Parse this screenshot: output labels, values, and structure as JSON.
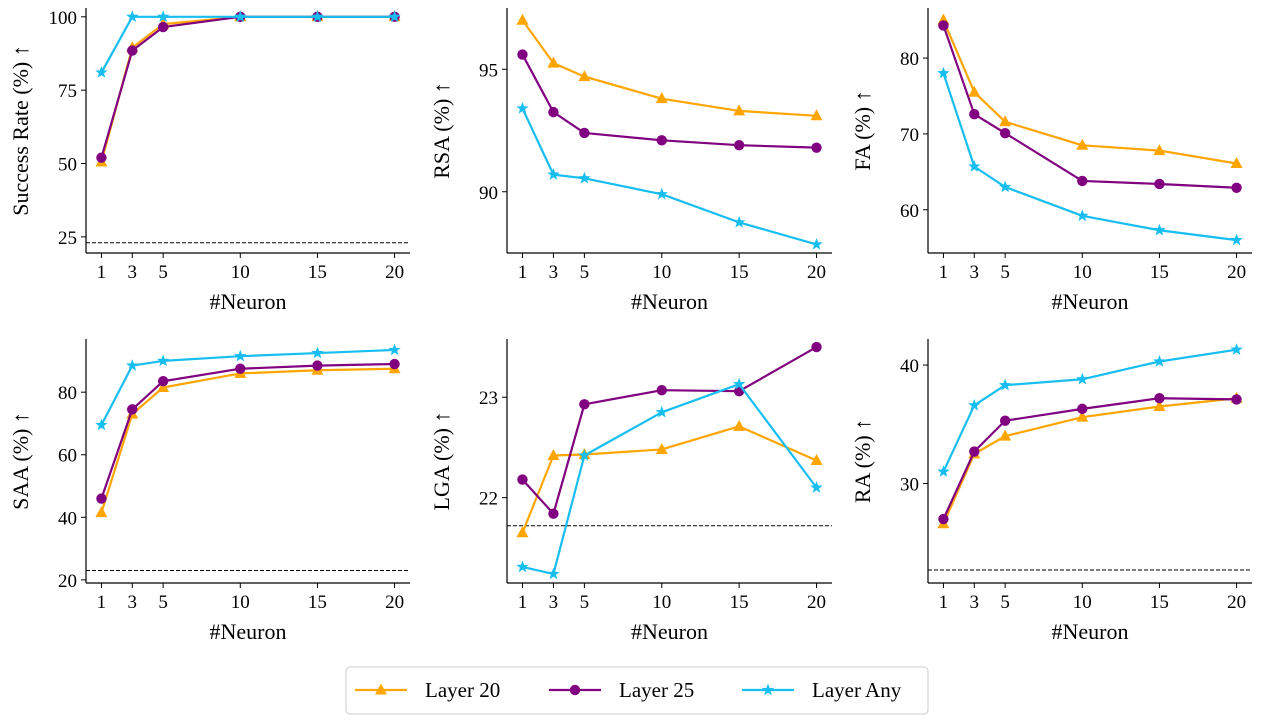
{
  "legend": {
    "items": [
      {
        "name": "Layer 20",
        "color": "#FFA500",
        "marker": "triangle"
      },
      {
        "name": "Layer 25",
        "color": "#800080",
        "marker": "circle"
      },
      {
        "name": "Layer Any",
        "color": "#17BEEF",
        "marker": "star"
      }
    ]
  },
  "chart_data": [
    {
      "type": "line",
      "title": "",
      "xlabel": "#Neuron",
      "ylabel": "Success Rate (%) ↑",
      "x": [
        1,
        3,
        5,
        10,
        15,
        20
      ],
      "xticks": [
        1,
        3,
        5,
        10,
        15,
        20
      ],
      "xlim": [
        0,
        21
      ],
      "ylim": [
        19.5,
        103
      ],
      "yticks": [
        25,
        50,
        75,
        100
      ],
      "baseline": 23,
      "series": [
        {
          "name": "Layer 20",
          "values": [
            50.5,
            89.5,
            97.5,
            100,
            100,
            100
          ]
        },
        {
          "name": "Layer 25",
          "values": [
            52,
            88.5,
            96.5,
            100,
            100,
            100
          ]
        },
        {
          "name": "Layer Any",
          "values": [
            81,
            100,
            100,
            100,
            100,
            100
          ]
        }
      ]
    },
    {
      "type": "line",
      "title": "",
      "xlabel": "#Neuron",
      "ylabel": "RSA (%) ↑",
      "x": [
        1,
        3,
        5,
        10,
        15,
        20
      ],
      "xticks": [
        1,
        3,
        5,
        10,
        15,
        20
      ],
      "xlim": [
        0,
        21
      ],
      "ylim": [
        87.5,
        97.5
      ],
      "yticks": [
        90,
        95
      ],
      "baseline": null,
      "series": [
        {
          "name": "Layer 20",
          "values": [
            97.0,
            95.25,
            94.7,
            93.8,
            93.3,
            93.1
          ]
        },
        {
          "name": "Layer 25",
          "values": [
            95.6,
            93.25,
            92.4,
            92.1,
            91.9,
            91.8
          ]
        },
        {
          "name": "Layer Any",
          "values": [
            93.4,
            90.7,
            90.55,
            89.9,
            88.75,
            87.85
          ]
        }
      ]
    },
    {
      "type": "line",
      "title": "",
      "xlabel": "#Neuron",
      "ylabel": "FA (%) ↑",
      "x": [
        1,
        3,
        5,
        10,
        15,
        20
      ],
      "xticks": [
        1,
        3,
        5,
        10,
        15,
        20
      ],
      "xlim": [
        0,
        21
      ],
      "ylim": [
        54.3,
        86.6
      ],
      "yticks": [
        60,
        70,
        80
      ],
      "baseline": null,
      "series": [
        {
          "name": "Layer 20",
          "values": [
            85,
            75.5,
            71.6,
            68.5,
            67.8,
            66.1
          ]
        },
        {
          "name": "Layer 25",
          "values": [
            84.3,
            72.6,
            70.1,
            63.8,
            63.4,
            62.9
          ]
        },
        {
          "name": "Layer Any",
          "values": [
            78,
            65.7,
            63.0,
            59.2,
            57.3,
            56.0
          ]
        }
      ]
    },
    {
      "type": "line",
      "title": "",
      "xlabel": "#Neuron",
      "ylabel": "SAA (%) ↑",
      "x": [
        1,
        3,
        5,
        10,
        15,
        20
      ],
      "xticks": [
        1,
        3,
        5,
        10,
        15,
        20
      ],
      "xlim": [
        0,
        21
      ],
      "ylim": [
        19,
        97
      ],
      "yticks": [
        20,
        40,
        60,
        80
      ],
      "baseline": 23,
      "series": [
        {
          "name": "Layer 20",
          "values": [
            41.5,
            73,
            81.5,
            86,
            87,
            87.5
          ]
        },
        {
          "name": "Layer 25",
          "values": [
            46,
            74.5,
            83.5,
            87.5,
            88.5,
            89
          ]
        },
        {
          "name": "Layer Any",
          "values": [
            69.5,
            88.5,
            90,
            91.5,
            92.5,
            93.5
          ]
        }
      ]
    },
    {
      "type": "line",
      "title": "",
      "xlabel": "#Neuron",
      "ylabel": "LGA (%) ↑",
      "x": [
        1,
        3,
        5,
        10,
        15,
        20
      ],
      "xticks": [
        1,
        3,
        5,
        10,
        15,
        20
      ],
      "xlim": [
        0,
        21
      ],
      "ylim": [
        21.15,
        23.58
      ],
      "yticks": [
        22,
        23
      ],
      "baseline": 21.72,
      "series": [
        {
          "name": "Layer 20",
          "values": [
            21.65,
            22.42,
            22.43,
            22.48,
            22.71,
            22.37
          ]
        },
        {
          "name": "Layer 25",
          "values": [
            22.18,
            21.84,
            22.93,
            23.07,
            23.06,
            23.5
          ]
        },
        {
          "name": "Layer Any",
          "values": [
            21.31,
            21.24,
            22.42,
            22.85,
            23.13,
            22.1
          ]
        }
      ]
    },
    {
      "type": "line",
      "title": "",
      "xlabel": "#Neuron",
      "ylabel": "RA (%) ↑",
      "x": [
        1,
        3,
        5,
        10,
        15,
        20
      ],
      "xticks": [
        1,
        3,
        5,
        10,
        15,
        20
      ],
      "xlim": [
        0,
        21
      ],
      "ylim": [
        21.6,
        42.2
      ],
      "yticks": [
        30,
        40
      ],
      "baseline": 22.7,
      "series": [
        {
          "name": "Layer 20",
          "values": [
            26.6,
            32.5,
            34,
            35.6,
            36.5,
            37.2
          ]
        },
        {
          "name": "Layer 25",
          "values": [
            27,
            32.7,
            35.3,
            36.3,
            37.2,
            37.1
          ]
        },
        {
          "name": "Layer Any",
          "values": [
            31,
            36.6,
            38.3,
            38.8,
            40.3,
            41.3
          ]
        }
      ]
    }
  ]
}
